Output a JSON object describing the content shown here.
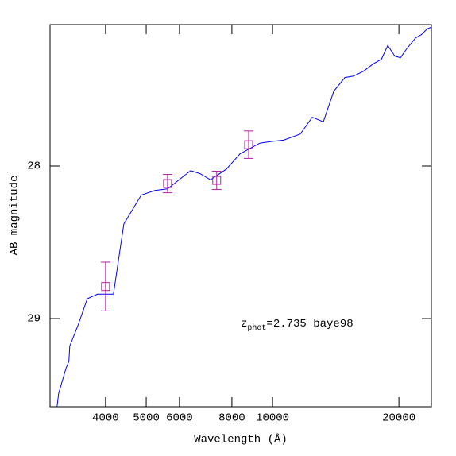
{
  "chart_data": {
    "type": "line",
    "xlabel": "Wavelength (Å)",
    "ylabel": "AB magnitude",
    "xscale": "log",
    "xlim": [
      2950,
      23900
    ],
    "ylim": [
      29.578,
      27.073
    ],
    "xticks": [
      4000,
      5000,
      6000,
      8000,
      10000,
      20000
    ],
    "yticks": [
      28,
      29
    ],
    "series": [
      {
        "color": "#0000ff",
        "x": [
          3065,
          3093,
          3216,
          3271,
          3287,
          3433,
          3619,
          3827,
          4177,
          4422,
          4867,
          5241,
          5620,
          6381,
          6721,
          7113,
          7765,
          8362,
          9323,
          9864,
          10625,
          11643,
          12432,
          13213,
          13988,
          14868,
          15594,
          16433,
          17389,
          18167,
          18813,
          19565,
          20172,
          20891,
          21920,
          22597,
          23393,
          23909
        ],
        "values": [
          29.578,
          29.49,
          29.33,
          29.28,
          29.18,
          29.05,
          28.87,
          28.84,
          28.84,
          28.38,
          28.19,
          28.16,
          28.15,
          28.03,
          28.05,
          28.09,
          28.02,
          27.92,
          27.85,
          27.84,
          27.83,
          27.79,
          27.68,
          27.71,
          27.51,
          27.42,
          27.41,
          27.38,
          27.33,
          27.3,
          27.21,
          27.28,
          27.29,
          27.23,
          27.16,
          27.14,
          27.1,
          27.09
        ]
      }
    ],
    "points": {
      "color": "#b0209f",
      "x": [
        4000,
        5620,
        7360,
        8770
      ],
      "values": [
        28.79,
        28.115,
        28.094,
        27.86
      ],
      "errors": [
        0.16,
        0.06,
        0.06,
        0.09
      ]
    },
    "annotation": {
      "color": "#0000ff",
      "text": "z",
      "subscript": "phot",
      "rest": "=2.735 baye98"
    }
  }
}
